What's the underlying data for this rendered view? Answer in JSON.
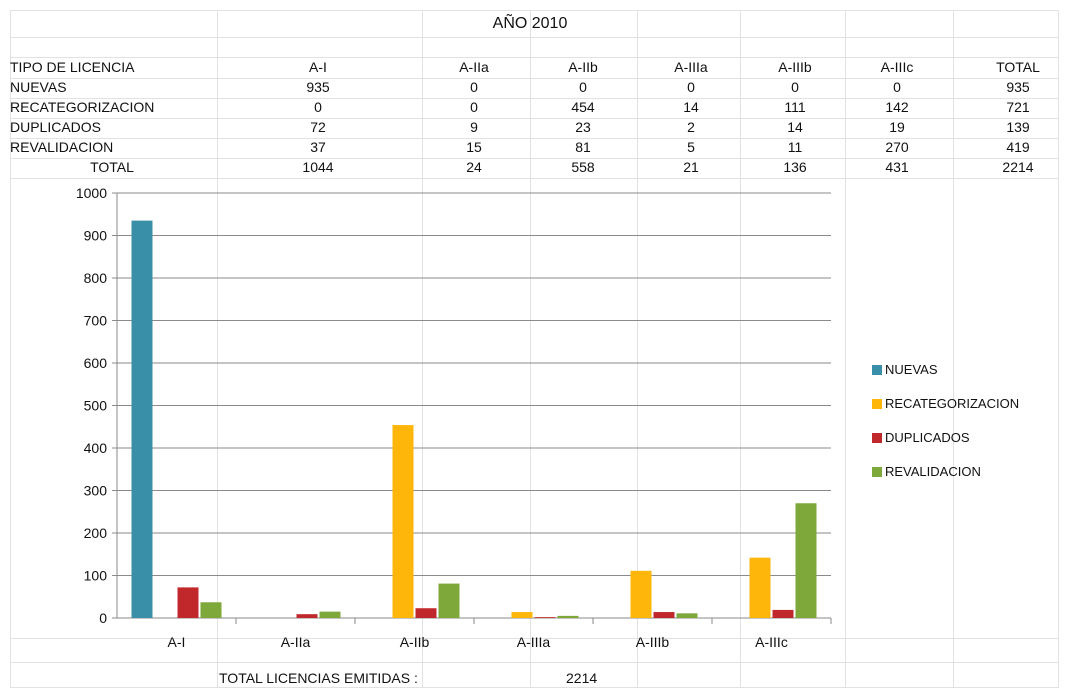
{
  "table": {
    "title": "AÑO 2010",
    "header_label": "TIPO DE LICENCIA",
    "columns": [
      "A-I",
      "A-IIa",
      "A-IIb",
      "A-IIIa",
      "A-IIIb",
      "A-IIIc",
      "TOTAL"
    ],
    "rows": [
      {
        "label": "NUEVAS",
        "values": [
          "935",
          "0",
          "0",
          "0",
          "0",
          "0",
          "935"
        ]
      },
      {
        "label": "RECATEGORIZACION",
        "values": [
          "0",
          "0",
          "454",
          "14",
          "111",
          "142",
          "721"
        ]
      },
      {
        "label": "DUPLICADOS",
        "values": [
          "72",
          "9",
          "23",
          "2",
          "14",
          "19",
          "139"
        ]
      },
      {
        "label": "REVALIDACION",
        "values": [
          "37",
          "15",
          "81",
          "5",
          "11",
          "270",
          "419"
        ]
      },
      {
        "label": "TOTAL",
        "values": [
          "1044",
          "24",
          "558",
          "21",
          "136",
          "431",
          "2214"
        ]
      }
    ]
  },
  "footer": {
    "label": "TOTAL LICENCIAS EMITIDAS :",
    "value": "2214"
  },
  "chart_data": {
    "type": "bar",
    "categories": [
      "A-I",
      "A-IIa",
      "A-IIb",
      "A-IIIa",
      "A-IIIb",
      "A-IIIc"
    ],
    "series": [
      {
        "name": "NUEVAS",
        "color": "#3a8fa8",
        "values": [
          935,
          0,
          0,
          0,
          0,
          0
        ]
      },
      {
        "name": "RECATEGORIZACION",
        "color": "#ffb60a",
        "values": [
          0,
          0,
          454,
          14,
          111,
          142
        ]
      },
      {
        "name": "DUPLICADOS",
        "color": "#c0282b",
        "values": [
          72,
          9,
          23,
          2,
          14,
          19
        ]
      },
      {
        "name": "REVALIDACION",
        "color": "#7ea83a",
        "values": [
          37,
          15,
          81,
          5,
          11,
          270
        ]
      }
    ],
    "ylim": [
      0,
      1000
    ],
    "yticks": [
      0,
      100,
      200,
      300,
      400,
      500,
      600,
      700,
      800,
      900,
      1000
    ],
    "grid": true,
    "legend_position": "right"
  }
}
